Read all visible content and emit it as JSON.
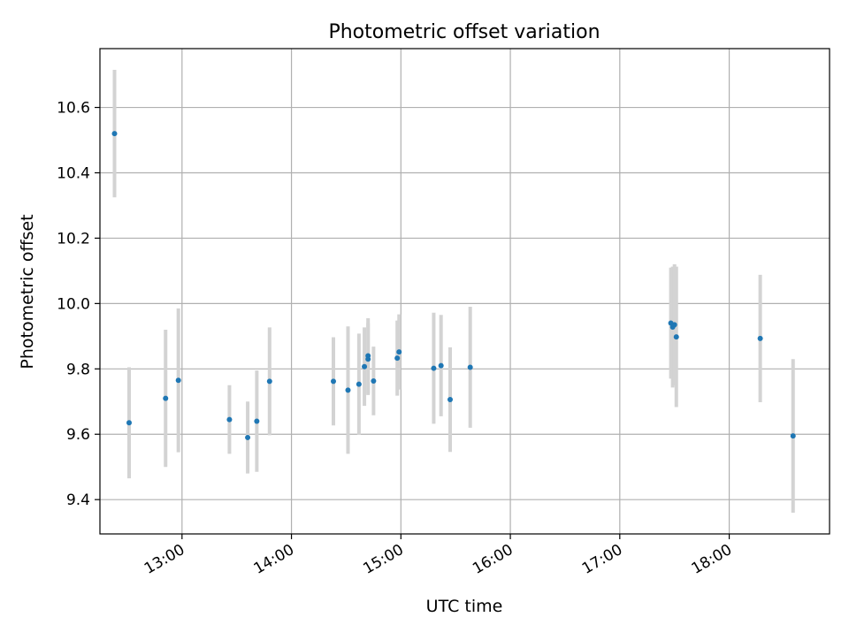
{
  "chart_data": {
    "type": "scatter",
    "title": "Photometric offset variation",
    "xlabel": "UTC time",
    "ylabel": "Photometric offset",
    "x_tick_labels": [
      "13:00",
      "14:00",
      "15:00",
      "16:00",
      "17:00",
      "18:00"
    ],
    "y_tick_labels": [
      "9.4",
      "9.6",
      "9.8",
      "10.0",
      "10.2",
      "10.4",
      "10.6"
    ],
    "xlim": [
      "12:15",
      "18:55"
    ],
    "ylim": [
      9.295,
      10.78
    ],
    "grid": true,
    "colors": {
      "points": "#1f77b4",
      "error_bars": "#d3d3d3",
      "grid": "#b0b0b0"
    },
    "points": [
      {
        "time": "12:23",
        "y": 10.52,
        "yerr": 0.195
      },
      {
        "time": "12:31",
        "y": 9.635,
        "yerr": 0.17
      },
      {
        "time": "12:51",
        "y": 9.71,
        "yerr": 0.21
      },
      {
        "time": "12:58",
        "y": 9.765,
        "yerr": 0.22
      },
      {
        "time": "13:26",
        "y": 9.645,
        "yerr": 0.105
      },
      {
        "time": "13:36",
        "y": 9.59,
        "yerr": 0.11
      },
      {
        "time": "13:41",
        "y": 9.64,
        "yerr": 0.155
      },
      {
        "time": "13:48",
        "y": 9.762,
        "yerr": 0.165
      },
      {
        "time": "14:23",
        "y": 9.762,
        "yerr": 0.135
      },
      {
        "time": "14:31",
        "y": 9.735,
        "yerr": 0.195
      },
      {
        "time": "14:37",
        "y": 9.753,
        "yerr": 0.155
      },
      {
        "time": "14:40",
        "y": 9.807,
        "yerr": 0.12
      },
      {
        "time": "14:42",
        "y": 9.84,
        "yerr": 0.115
      },
      {
        "time": "14:42",
        "y": 9.83,
        "yerr": 0.11
      },
      {
        "time": "14:45",
        "y": 9.763,
        "yerr": 0.105
      },
      {
        "time": "14:58",
        "y": 9.833,
        "yerr": 0.115
      },
      {
        "time": "14:59",
        "y": 9.852,
        "yerr": 0.115
      },
      {
        "time": "15:18",
        "y": 9.802,
        "yerr": 0.17
      },
      {
        "time": "15:22",
        "y": 9.81,
        "yerr": 0.155
      },
      {
        "time": "15:27",
        "y": 9.706,
        "yerr": 0.16
      },
      {
        "time": "15:38",
        "y": 9.805,
        "yerr": 0.185
      },
      {
        "time": "17:28",
        "y": 9.94,
        "yerr": 0.17
      },
      {
        "time": "17:29",
        "y": 9.928,
        "yerr": 0.185
      },
      {
        "time": "17:30",
        "y": 9.935,
        "yerr": 0.185
      },
      {
        "time": "17:31",
        "y": 9.898,
        "yerr": 0.215
      },
      {
        "time": "18:17",
        "y": 9.893,
        "yerr": 0.195
      },
      {
        "time": "18:35",
        "y": 9.595,
        "yerr": 0.235
      }
    ]
  }
}
